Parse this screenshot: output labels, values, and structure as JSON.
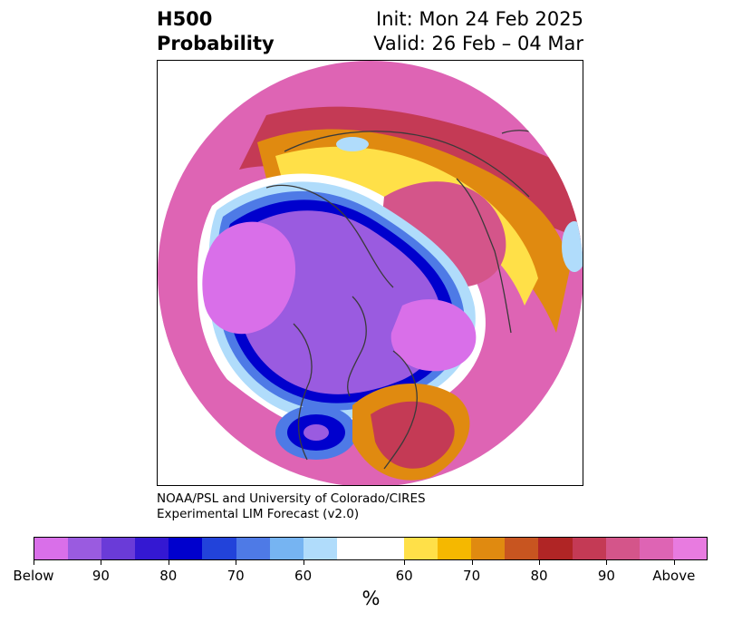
{
  "title": {
    "left_line1": "H500",
    "left_line2": "Probability",
    "right_line1": "Init: Mon 24 Feb 2025",
    "right_line2": "Valid: 26 Feb – 04 Mar"
  },
  "credit": {
    "line1": "NOAA/PSL and University of Colorado/CIRES",
    "line2": "Experimental LIM Forecast (v2.0)"
  },
  "colorbar": {
    "colors": [
      "#d96fe9",
      "#9a5be0",
      "#6a3bd8",
      "#3418d2",
      "#0000cd",
      "#2243da",
      "#4e7ae6",
      "#76b4f2",
      "#b0dcfb",
      "#ffffff",
      "#ffe048",
      "#f5b800",
      "#e08a10",
      "#c85520",
      "#b02525",
      "#c43a55",
      "#d4558a",
      "#de64b4",
      "#e87be0"
    ],
    "labels": [
      "Below",
      "90",
      "80",
      "70",
      "60",
      "60",
      "70",
      "80",
      "90",
      "Above"
    ],
    "unit": "%"
  },
  "map": {
    "projection": "polar-stereographic",
    "field": "H500 probability",
    "palette": {
      "above_strong": "#de64b4",
      "above_mid": "#c43a55",
      "above_warm": "#e08a10",
      "above_weak": "#ffe048",
      "neutral": "#ffffff",
      "below_weak": "#b0dcfb",
      "below_mid": "#4e7ae6",
      "below_strong": "#0000cd",
      "below_violet": "#9a5be0",
      "below_extreme": "#d96fe9",
      "coastline": "#3a3a3a"
    }
  }
}
